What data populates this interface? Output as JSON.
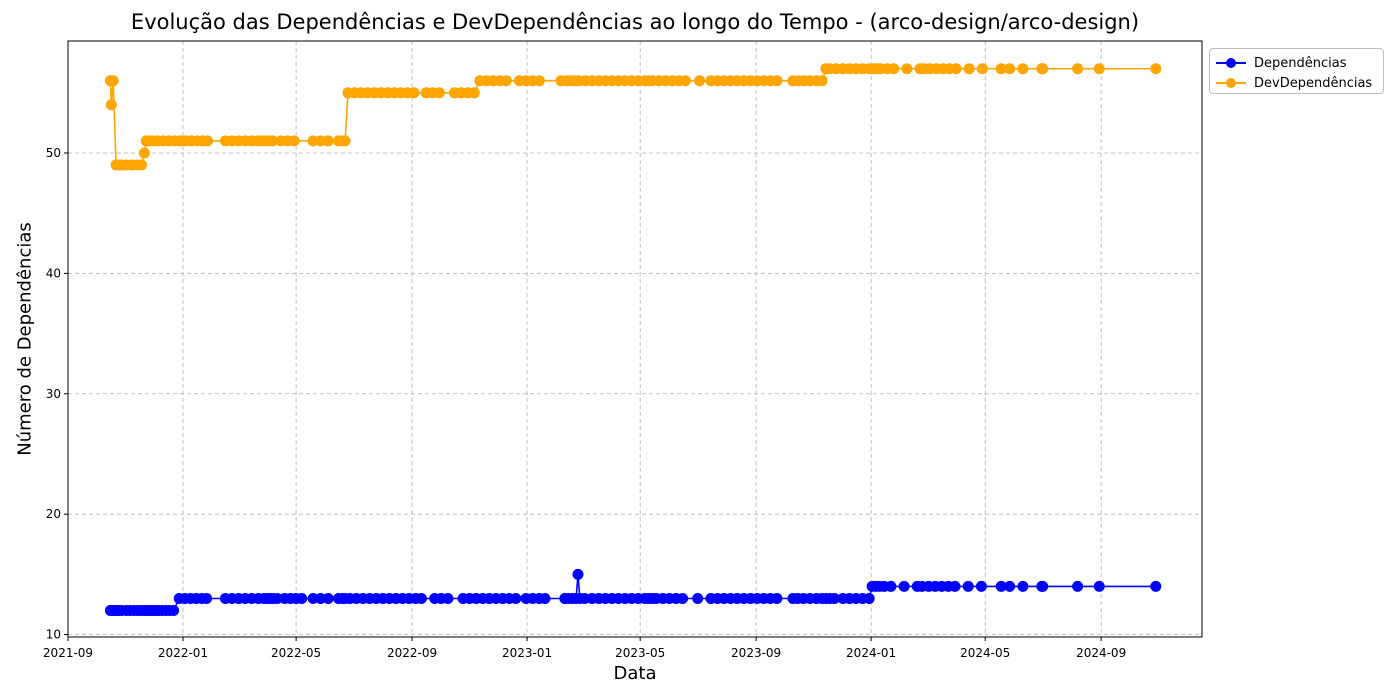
{
  "chart_data": {
    "type": "line",
    "title": "Evolução das Dependências e DevDependências ao longo do Tempo - (arco-design/arco-design)",
    "xlabel": "Data",
    "ylabel": "Número de Dependências",
    "xlim": [
      "2021-09-01",
      "2024-12-17"
    ],
    "ylim": [
      9.8,
      59.3
    ],
    "x_ticks": [
      "2021-09",
      "2022-01",
      "2022-05",
      "2022-09",
      "2023-01",
      "2023-05",
      "2023-09",
      "2024-01",
      "2024-05",
      "2024-09"
    ],
    "y_ticks": [
      10,
      20,
      30,
      40,
      50
    ],
    "grid": true,
    "legend_position": "outside-top-right",
    "series": [
      {
        "name": "Dependências",
        "color": "#0000ff",
        "points": [
          [
            "2021-10-16",
            12
          ],
          [
            "2021-10-18",
            12
          ],
          [
            "2021-10-20",
            12
          ],
          [
            "2021-10-22",
            12
          ],
          [
            "2021-10-25",
            12
          ],
          [
            "2021-10-28",
            12
          ],
          [
            "2021-11-02",
            12
          ],
          [
            "2021-11-06",
            12
          ],
          [
            "2021-11-10",
            12
          ],
          [
            "2021-11-14",
            12
          ],
          [
            "2021-11-18",
            12
          ],
          [
            "2021-11-21",
            12
          ],
          [
            "2021-11-24",
            12
          ],
          [
            "2021-11-27",
            12
          ],
          [
            "2021-11-30",
            12
          ],
          [
            "2021-12-03",
            12
          ],
          [
            "2021-12-06",
            12
          ],
          [
            "2021-12-10",
            12
          ],
          [
            "2021-12-14",
            12
          ],
          [
            "2021-12-18",
            12
          ],
          [
            "2021-12-22",
            12
          ],
          [
            "2021-12-28",
            13
          ],
          [
            "2022-01-03",
            13
          ],
          [
            "2022-01-09",
            13
          ],
          [
            "2022-01-15",
            13
          ],
          [
            "2022-01-21",
            13
          ],
          [
            "2022-01-26",
            13
          ],
          [
            "2022-02-15",
            13
          ],
          [
            "2022-02-22",
            13
          ],
          [
            "2022-03-01",
            13
          ],
          [
            "2022-03-08",
            13
          ],
          [
            "2022-03-15",
            13
          ],
          [
            "2022-03-22",
            13
          ],
          [
            "2022-03-28",
            13
          ],
          [
            "2022-04-01",
            13
          ],
          [
            "2022-04-04",
            13
          ],
          [
            "2022-04-07",
            13
          ],
          [
            "2022-04-11",
            13
          ],
          [
            "2022-04-19",
            13
          ],
          [
            "2022-04-25",
            13
          ],
          [
            "2022-05-01",
            13
          ],
          [
            "2022-05-07",
            13
          ],
          [
            "2022-05-19",
            13
          ],
          [
            "2022-05-27",
            13
          ],
          [
            "2022-06-04",
            13
          ],
          [
            "2022-06-15",
            13
          ],
          [
            "2022-06-19",
            13
          ],
          [
            "2022-06-22",
            13
          ],
          [
            "2022-06-27",
            13
          ],
          [
            "2022-07-04",
            13
          ],
          [
            "2022-07-11",
            13
          ],
          [
            "2022-07-18",
            13
          ],
          [
            "2022-07-25",
            13
          ],
          [
            "2022-08-01",
            13
          ],
          [
            "2022-08-08",
            13
          ],
          [
            "2022-08-15",
            13
          ],
          [
            "2022-08-22",
            13
          ],
          [
            "2022-08-29",
            13
          ],
          [
            "2022-09-05",
            13
          ],
          [
            "2022-09-11",
            13
          ],
          [
            "2022-09-25",
            13
          ],
          [
            "2022-10-02",
            13
          ],
          [
            "2022-10-09",
            13
          ],
          [
            "2022-10-25",
            13
          ],
          [
            "2022-11-01",
            13
          ],
          [
            "2022-11-08",
            13
          ],
          [
            "2022-11-15",
            13
          ],
          [
            "2022-11-22",
            13
          ],
          [
            "2022-11-29",
            13
          ],
          [
            "2022-12-06",
            13
          ],
          [
            "2022-12-13",
            13
          ],
          [
            "2022-12-20",
            13
          ],
          [
            "2022-12-31",
            13
          ],
          [
            "2023-01-07",
            13
          ],
          [
            "2023-01-14",
            13
          ],
          [
            "2023-01-20",
            13
          ],
          [
            "2023-02-10",
            13
          ],
          [
            "2023-02-14",
            13
          ],
          [
            "2023-02-18",
            13
          ],
          [
            "2023-02-22",
            13
          ],
          [
            "2023-02-24",
            15
          ],
          [
            "2023-02-26",
            13
          ],
          [
            "2023-03-03",
            13
          ],
          [
            "2023-03-11",
            13
          ],
          [
            "2023-03-18",
            13
          ],
          [
            "2023-03-25",
            13
          ],
          [
            "2023-04-01",
            13
          ],
          [
            "2023-04-08",
            13
          ],
          [
            "2023-04-15",
            13
          ],
          [
            "2023-04-22",
            13
          ],
          [
            "2023-04-29",
            13
          ],
          [
            "2023-05-06",
            13
          ],
          [
            "2023-05-10",
            13
          ],
          [
            "2023-05-14",
            13
          ],
          [
            "2023-05-18",
            13
          ],
          [
            "2023-05-25",
            13
          ],
          [
            "2023-06-01",
            13
          ],
          [
            "2023-06-08",
            13
          ],
          [
            "2023-06-15",
            13
          ],
          [
            "2023-07-01",
            13
          ],
          [
            "2023-07-15",
            13
          ],
          [
            "2023-07-22",
            13
          ],
          [
            "2023-07-29",
            13
          ],
          [
            "2023-08-05",
            13
          ],
          [
            "2023-08-12",
            13
          ],
          [
            "2023-08-19",
            13
          ],
          [
            "2023-08-26",
            13
          ],
          [
            "2023-09-02",
            13
          ],
          [
            "2023-09-09",
            13
          ],
          [
            "2023-09-16",
            13
          ],
          [
            "2023-09-23",
            13
          ],
          [
            "2023-10-10",
            13
          ],
          [
            "2023-10-15",
            13
          ],
          [
            "2023-10-21",
            13
          ],
          [
            "2023-10-28",
            13
          ],
          [
            "2023-11-04",
            13
          ],
          [
            "2023-11-10",
            13
          ],
          [
            "2023-11-14",
            13
          ],
          [
            "2023-11-18",
            13
          ],
          [
            "2023-11-23",
            13
          ],
          [
            "2023-12-02",
            13
          ],
          [
            "2023-12-09",
            13
          ],
          [
            "2023-12-16",
            13
          ],
          [
            "2023-12-23",
            13
          ],
          [
            "2023-12-30",
            13
          ],
          [
            "2024-01-02",
            14
          ],
          [
            "2024-01-06",
            14
          ],
          [
            "2024-01-10",
            14
          ],
          [
            "2024-01-15",
            14
          ],
          [
            "2024-01-22",
            14
          ],
          [
            "2024-02-05",
            14
          ],
          [
            "2024-02-19",
            14
          ],
          [
            "2024-02-24",
            14
          ],
          [
            "2024-03-02",
            14
          ],
          [
            "2024-03-09",
            14
          ],
          [
            "2024-03-16",
            14
          ],
          [
            "2024-03-23",
            14
          ],
          [
            "2024-03-30",
            14
          ],
          [
            "2024-04-13",
            14
          ],
          [
            "2024-04-27",
            14
          ],
          [
            "2024-05-18",
            14
          ],
          [
            "2024-05-27",
            14
          ],
          [
            "2024-06-10",
            14
          ],
          [
            "2024-06-30",
            14
          ],
          [
            "2024-07-01",
            14
          ],
          [
            "2024-08-07",
            14
          ],
          [
            "2024-08-30",
            14
          ],
          [
            "2024-10-29",
            14
          ]
        ]
      },
      {
        "name": "DevDependências",
        "color": "#ffa500",
        "points": [
          [
            "2021-10-16",
            56
          ],
          [
            "2021-10-17",
            54
          ],
          [
            "2021-10-19",
            56
          ],
          [
            "2021-10-22",
            49
          ],
          [
            "2021-10-25",
            49
          ],
          [
            "2021-10-28",
            49
          ],
          [
            "2021-11-02",
            49
          ],
          [
            "2021-11-08",
            49
          ],
          [
            "2021-11-13",
            49
          ],
          [
            "2021-11-18",
            49
          ],
          [
            "2021-11-21",
            50
          ],
          [
            "2021-11-23",
            51
          ],
          [
            "2021-11-26",
            51
          ],
          [
            "2021-11-30",
            51
          ],
          [
            "2021-12-05",
            51
          ],
          [
            "2021-12-11",
            51
          ],
          [
            "2021-12-17",
            51
          ],
          [
            "2021-12-23",
            51
          ],
          [
            "2021-12-29",
            51
          ],
          [
            "2022-01-04",
            51
          ],
          [
            "2022-01-10",
            51
          ],
          [
            "2022-01-16",
            51
          ],
          [
            "2022-01-22",
            51
          ],
          [
            "2022-01-27",
            51
          ],
          [
            "2022-02-15",
            51
          ],
          [
            "2022-02-22",
            51
          ],
          [
            "2022-03-01",
            51
          ],
          [
            "2022-03-08",
            51
          ],
          [
            "2022-03-15",
            51
          ],
          [
            "2022-03-21",
            51
          ],
          [
            "2022-03-25",
            51
          ],
          [
            "2022-03-29",
            51
          ],
          [
            "2022-04-02",
            51
          ],
          [
            "2022-04-06",
            51
          ],
          [
            "2022-04-15",
            51
          ],
          [
            "2022-04-22",
            51
          ],
          [
            "2022-04-29",
            51
          ],
          [
            "2022-05-19",
            51
          ],
          [
            "2022-05-27",
            51
          ],
          [
            "2022-06-04",
            51
          ],
          [
            "2022-06-15",
            51
          ],
          [
            "2022-06-19",
            51
          ],
          [
            "2022-06-22",
            51
          ],
          [
            "2022-06-25",
            55
          ],
          [
            "2022-07-02",
            55
          ],
          [
            "2022-07-09",
            55
          ],
          [
            "2022-07-16",
            55
          ],
          [
            "2022-07-23",
            55
          ],
          [
            "2022-07-30",
            55
          ],
          [
            "2022-08-06",
            55
          ],
          [
            "2022-08-13",
            55
          ],
          [
            "2022-08-20",
            55
          ],
          [
            "2022-08-27",
            55
          ],
          [
            "2022-09-03",
            55
          ],
          [
            "2022-09-16",
            55
          ],
          [
            "2022-09-23",
            55
          ],
          [
            "2022-09-30",
            55
          ],
          [
            "2022-10-16",
            55
          ],
          [
            "2022-10-23",
            55
          ],
          [
            "2022-10-30",
            55
          ],
          [
            "2022-11-06",
            55
          ],
          [
            "2022-11-12",
            56
          ],
          [
            "2022-11-19",
            56
          ],
          [
            "2022-11-26",
            56
          ],
          [
            "2022-12-03",
            56
          ],
          [
            "2022-12-10",
            56
          ],
          [
            "2022-12-24",
            56
          ],
          [
            "2022-12-31",
            56
          ],
          [
            "2023-01-07",
            56
          ],
          [
            "2023-01-14",
            56
          ],
          [
            "2023-02-06",
            56
          ],
          [
            "2023-02-12",
            56
          ],
          [
            "2023-02-17",
            56
          ],
          [
            "2023-02-21",
            56
          ],
          [
            "2023-02-25",
            56
          ],
          [
            "2023-03-04",
            56
          ],
          [
            "2023-03-11",
            56
          ],
          [
            "2023-03-18",
            56
          ],
          [
            "2023-03-25",
            56
          ],
          [
            "2023-04-01",
            56
          ],
          [
            "2023-04-08",
            56
          ],
          [
            "2023-04-15",
            56
          ],
          [
            "2023-04-22",
            56
          ],
          [
            "2023-04-29",
            56
          ],
          [
            "2023-05-06",
            56
          ],
          [
            "2023-05-10",
            56
          ],
          [
            "2023-05-14",
            56
          ],
          [
            "2023-05-21",
            56
          ],
          [
            "2023-05-28",
            56
          ],
          [
            "2023-06-04",
            56
          ],
          [
            "2023-06-11",
            56
          ],
          [
            "2023-06-18",
            56
          ],
          [
            "2023-07-03",
            56
          ],
          [
            "2023-07-15",
            56
          ],
          [
            "2023-07-22",
            56
          ],
          [
            "2023-07-29",
            56
          ],
          [
            "2023-08-05",
            56
          ],
          [
            "2023-08-12",
            56
          ],
          [
            "2023-08-19",
            56
          ],
          [
            "2023-08-26",
            56
          ],
          [
            "2023-09-02",
            56
          ],
          [
            "2023-09-09",
            56
          ],
          [
            "2023-09-16",
            56
          ],
          [
            "2023-09-23",
            56
          ],
          [
            "2023-10-10",
            56
          ],
          [
            "2023-10-16",
            56
          ],
          [
            "2023-10-22",
            56
          ],
          [
            "2023-10-28",
            56
          ],
          [
            "2023-11-04",
            56
          ],
          [
            "2023-11-10",
            56
          ],
          [
            "2023-11-14",
            57
          ],
          [
            "2023-11-18",
            57
          ],
          [
            "2023-11-25",
            57
          ],
          [
            "2023-12-02",
            57
          ],
          [
            "2023-12-09",
            57
          ],
          [
            "2023-12-16",
            57
          ],
          [
            "2023-12-23",
            57
          ],
          [
            "2023-12-30",
            57
          ],
          [
            "2024-01-03",
            57
          ],
          [
            "2024-01-07",
            57
          ],
          [
            "2024-01-11",
            57
          ],
          [
            "2024-01-18",
            57
          ],
          [
            "2024-01-25",
            57
          ],
          [
            "2024-02-08",
            57
          ],
          [
            "2024-02-22",
            57
          ],
          [
            "2024-02-26",
            57
          ],
          [
            "2024-03-03",
            57
          ],
          [
            "2024-03-10",
            57
          ],
          [
            "2024-03-17",
            57
          ],
          [
            "2024-03-24",
            57
          ],
          [
            "2024-03-31",
            57
          ],
          [
            "2024-04-14",
            57
          ],
          [
            "2024-04-28",
            57
          ],
          [
            "2024-05-18",
            57
          ],
          [
            "2024-05-27",
            57
          ],
          [
            "2024-06-10",
            57
          ],
          [
            "2024-06-30",
            57
          ],
          [
            "2024-07-01",
            57
          ],
          [
            "2024-08-07",
            57
          ],
          [
            "2024-08-30",
            57
          ],
          [
            "2024-10-29",
            57
          ]
        ]
      }
    ]
  }
}
